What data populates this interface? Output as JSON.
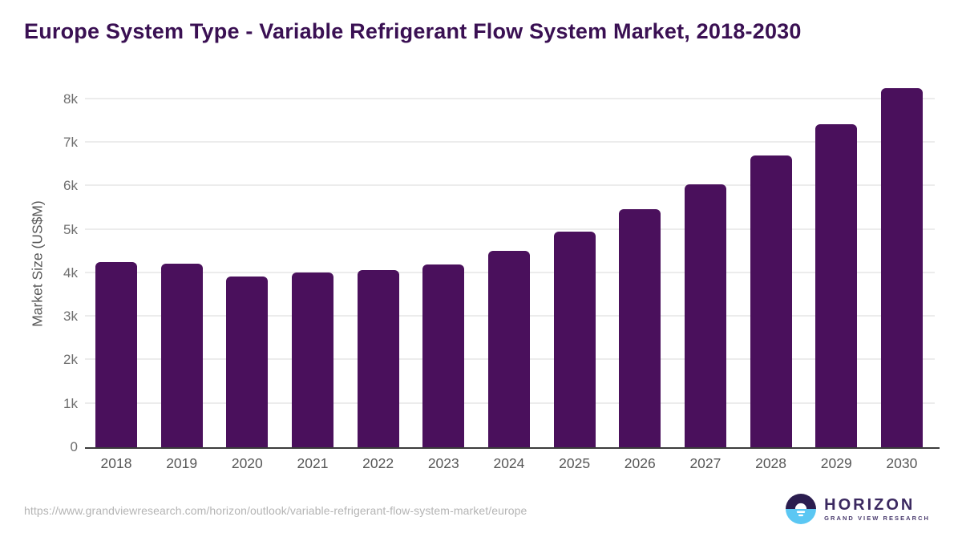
{
  "title": "Europe System Type - Variable Refrigerant Flow System Market, 2018-2030",
  "chart_data": {
    "type": "bar",
    "categories": [
      "2018",
      "2019",
      "2020",
      "2021",
      "2022",
      "2023",
      "2024",
      "2025",
      "2026",
      "2027",
      "2028",
      "2029",
      "2030"
    ],
    "values": [
      4260,
      4220,
      3930,
      4020,
      4080,
      4200,
      4510,
      4960,
      5480,
      6050,
      6700,
      7420,
      8250
    ],
    "title": "Europe System Type - Variable Refrigerant Flow System Market, 2018-2030",
    "xlabel": "",
    "ylabel": "Market Size (US$M)",
    "ylim": [
      0,
      8440
    ],
    "yticks": [
      {
        "value": 0,
        "label": "0"
      },
      {
        "value": 1000,
        "label": "1k"
      },
      {
        "value": 2000,
        "label": "2k"
      },
      {
        "value": 3000,
        "label": "3k"
      },
      {
        "value": 4000,
        "label": "4k"
      },
      {
        "value": 5000,
        "label": "5k"
      },
      {
        "value": 6000,
        "label": "6k"
      },
      {
        "value": 7000,
        "label": "7k"
      },
      {
        "value": 8000,
        "label": "8k"
      }
    ],
    "grid": true,
    "legend": "none",
    "bar_color": "#4a105c"
  },
  "colors": {
    "title": "#3a1053",
    "bar": "#4a105c",
    "gridline": "#ececec",
    "axis_line": "#3c3c3c",
    "tick_text": "#6e6e6e",
    "logo_dark": "#2b1d4f",
    "logo_blue": "#5bc7f3"
  },
  "footer": {
    "source_url": "https://www.grandviewresearch.com/horizon/outlook/variable-refrigerant-flow-system-market/europe"
  },
  "logo": {
    "name": "HORIZON",
    "subtitle": "GRAND VIEW RESEARCH",
    "icon": "sun-horizon-icon"
  }
}
